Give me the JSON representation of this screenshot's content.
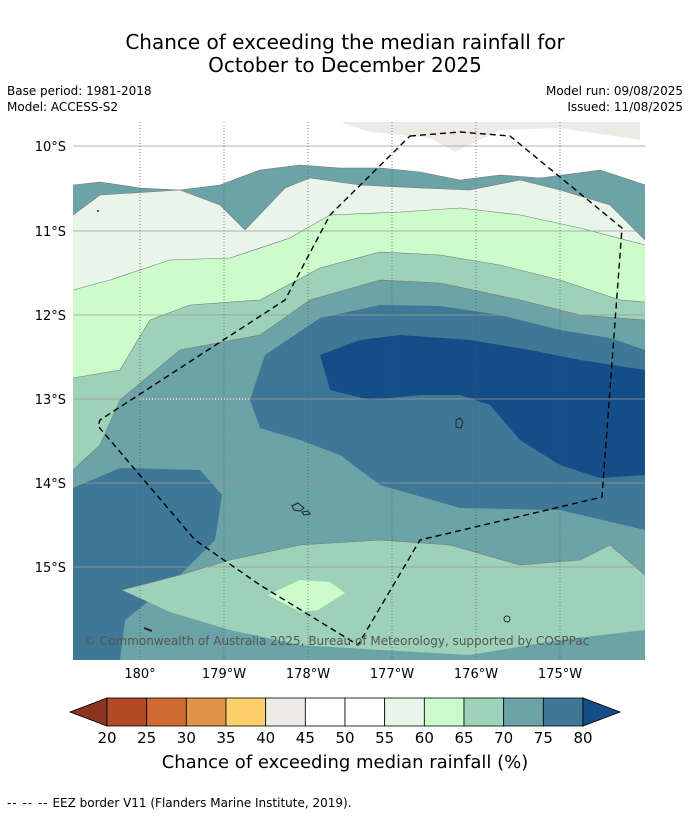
{
  "title_line1": "Chance of exceeding the median rainfall for",
  "title_line2": "October to December 2025",
  "base_period": "Base period: 1981-2018",
  "model": "Model: ACCESS-S2",
  "model_run": "Model run: 09/08/2025",
  "issued": "Issued: 11/08/2025",
  "lat_labels": [
    "10°S",
    "11°S",
    "12°S",
    "13°S",
    "14°S",
    "15°S"
  ],
  "lon_labels": [
    "180°",
    "179°W",
    "178°W",
    "177°W",
    "176°W",
    "175°W"
  ],
  "copyright": "© Commonwealth of Australia 2025, Bureau of Meteorology, supported by COSPPac",
  "colorbar": {
    "ticks": [
      "20",
      "25",
      "30",
      "35",
      "40",
      "45",
      "50",
      "55",
      "60",
      "65",
      "70",
      "75",
      "80"
    ],
    "colors": [
      "#8b3520",
      "#b34a26",
      "#d06a35",
      "#e0944a",
      "#fdd06c",
      "#eeebe6",
      "#ffffff",
      "#ffffff",
      "#e9f5e8",
      "#ccfccc",
      "#9dd2b9",
      "#6ba3a6",
      "#3f7796",
      "#144d87"
    ],
    "label": "Chance of exceeding median rainfall (%)"
  },
  "footer": {
    "dashes": "-- -- --",
    "text": "EEZ border V11 (Flanders Marine Institute, 2019)."
  }
}
